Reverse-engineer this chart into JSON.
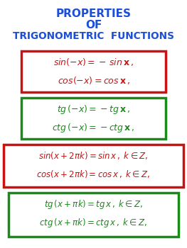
{
  "title_color": "#1C4FD8",
  "bg_color": "#FFFFFF",
  "box1_color": "#CC1111",
  "box1_text_color": "#CC1111",
  "box2_color": "#1A8A1A",
  "box2_text_color": "#1A8A1A",
  "box3_color": "#CC1111",
  "box3_text_color": "#CC1111",
  "box4_color": "#1A8A1A",
  "box4_text_color": "#1A8A1A",
  "title1": "PROPERTIES",
  "title2": "OF",
  "title3": "TRIGONOMETRIC  FUNCTIONS",
  "b1l1": "$sin(-x) = -\\,sin\\,\\mathbf{x}\\,,$",
  "b1l2": "$cos(-x) = cos\\,\\mathbf{x}\\,,$",
  "b2l1": "$tg\\,(-x) = -tg\\,\\mathbf{x}\\,,$",
  "b2l2": "$ctg\\,(-x) = -ctg\\,\\mathbf{x}\\,,$",
  "b3l1": "$sin(x+2\\pi k) = sin\\,x\\,,\\; k{\\in}Z,$",
  "b3l2": "$cos(x+2\\pi k) = cos\\,x\\,,\\; k{\\in}Z,$",
  "b4l1": "$tg\\,(x+\\pi k) = tg\\,x\\,,\\; k{\\in}Z,$",
  "b4l2": "$ctg\\,(x+\\pi k) = ctg\\,x\\,,\\; k{\\in}Z,$"
}
